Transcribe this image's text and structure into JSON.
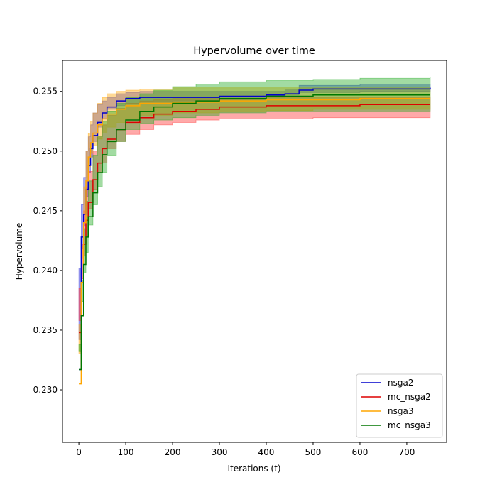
{
  "chart_data": {
    "type": "line",
    "title": "Hypervolume over time",
    "xlabel": "Iterations (t)",
    "ylabel": "Hypervolume",
    "xlim": [
      -35,
      785
    ],
    "ylim": [
      0.2256,
      0.2576
    ],
    "xticks": [
      0,
      100,
      200,
      300,
      400,
      500,
      600,
      700
    ],
    "yticks": [
      0.23,
      0.235,
      0.24,
      0.245,
      0.25,
      0.255
    ],
    "xtick_labels": [
      "0",
      "100",
      "200",
      "300",
      "400",
      "500",
      "600",
      "700"
    ],
    "ytick_labels": [
      "0.230",
      "0.235",
      "0.240",
      "0.245",
      "0.250",
      "0.255"
    ],
    "legend_position": "lower-right",
    "grid": false,
    "series": [
      {
        "name": "nsga2",
        "color": "#0000cc",
        "band_color": "#3333dd",
        "mean": [
          [
            0,
            0.2317
          ],
          [
            5,
            0.2428
          ],
          [
            10,
            0.2447
          ],
          [
            15,
            0.2468
          ],
          [
            20,
            0.2488
          ],
          [
            25,
            0.2502
          ],
          [
            30,
            0.2513
          ],
          [
            40,
            0.2524
          ],
          [
            50,
            0.2532
          ],
          [
            60,
            0.2537
          ],
          [
            80,
            0.2542
          ],
          [
            100,
            0.2544
          ],
          [
            130,
            0.2545
          ],
          [
            200,
            0.2545
          ],
          [
            300,
            0.2546
          ],
          [
            400,
            0.2547
          ],
          [
            440,
            0.2548
          ],
          [
            470,
            0.2551
          ],
          [
            500,
            0.2552
          ],
          [
            600,
            0.2552
          ],
          [
            750,
            0.2553
          ]
        ],
        "upper": [
          [
            0,
            0.2342
          ],
          [
            5,
            0.2455
          ],
          [
            10,
            0.2478
          ],
          [
            15,
            0.25
          ],
          [
            20,
            0.2512
          ],
          [
            25,
            0.2522
          ],
          [
            30,
            0.2532
          ],
          [
            40,
            0.2539
          ],
          [
            50,
            0.2542
          ],
          [
            60,
            0.2545
          ],
          [
            80,
            0.2548
          ],
          [
            100,
            0.2549
          ],
          [
            130,
            0.255
          ],
          [
            200,
            0.255
          ],
          [
            300,
            0.255
          ],
          [
            400,
            0.255
          ],
          [
            440,
            0.2552
          ],
          [
            470,
            0.2555
          ],
          [
            600,
            0.2556
          ],
          [
            750,
            0.2556
          ]
        ],
        "lower": [
          [
            0,
            0.2292
          ],
          [
            5,
            0.2402
          ],
          [
            10,
            0.2418
          ],
          [
            15,
            0.2437
          ],
          [
            20,
            0.2462
          ],
          [
            25,
            0.2482
          ],
          [
            30,
            0.2495
          ],
          [
            40,
            0.2508
          ],
          [
            50,
            0.252
          ],
          [
            60,
            0.2527
          ],
          [
            80,
            0.2535
          ],
          [
            100,
            0.2538
          ],
          [
            130,
            0.254
          ],
          [
            200,
            0.2541
          ],
          [
            300,
            0.2542
          ],
          [
            400,
            0.2543
          ],
          [
            440,
            0.2545
          ],
          [
            470,
            0.2547
          ],
          [
            600,
            0.2549
          ],
          [
            750,
            0.255
          ]
        ]
      },
      {
        "name": "mc_nsga2",
        "color": "#dd0000",
        "band_color": "#ff3333",
        "mean": [
          [
            0,
            0.2348
          ],
          [
            5,
            0.239
          ],
          [
            10,
            0.2422
          ],
          [
            15,
            0.2442
          ],
          [
            20,
            0.2457
          ],
          [
            30,
            0.2476
          ],
          [
            40,
            0.249
          ],
          [
            50,
            0.2502
          ],
          [
            60,
            0.251
          ],
          [
            80,
            0.2518
          ],
          [
            100,
            0.2524
          ],
          [
            130,
            0.2528
          ],
          [
            160,
            0.2531
          ],
          [
            200,
            0.2533
          ],
          [
            250,
            0.2535
          ],
          [
            300,
            0.2537
          ],
          [
            400,
            0.2538
          ],
          [
            500,
            0.2538
          ],
          [
            600,
            0.2539
          ],
          [
            750,
            0.2539
          ]
        ],
        "upper": [
          [
            0,
            0.2385
          ],
          [
            5,
            0.2422
          ],
          [
            10,
            0.245
          ],
          [
            15,
            0.247
          ],
          [
            20,
            0.2483
          ],
          [
            30,
            0.25
          ],
          [
            40,
            0.2512
          ],
          [
            50,
            0.2522
          ],
          [
            60,
            0.253
          ],
          [
            80,
            0.2536
          ],
          [
            100,
            0.254
          ],
          [
            130,
            0.2542
          ],
          [
            160,
            0.2543
          ],
          [
            200,
            0.2544
          ],
          [
            300,
            0.2544
          ],
          [
            400,
            0.2545
          ],
          [
            500,
            0.2545
          ],
          [
            600,
            0.2545
          ],
          [
            750,
            0.2545
          ]
        ],
        "lower": [
          [
            0,
            0.231
          ],
          [
            5,
            0.2358
          ],
          [
            10,
            0.2393
          ],
          [
            15,
            0.2412
          ],
          [
            20,
            0.2428
          ],
          [
            30,
            0.2452
          ],
          [
            40,
            0.2468
          ],
          [
            50,
            0.2482
          ],
          [
            60,
            0.249
          ],
          [
            80,
            0.2502
          ],
          [
            100,
            0.2508
          ],
          [
            130,
            0.2514
          ],
          [
            160,
            0.2518
          ],
          [
            200,
            0.2522
          ],
          [
            250,
            0.2524
          ],
          [
            300,
            0.2526
          ],
          [
            400,
            0.2527
          ],
          [
            500,
            0.2527
          ],
          [
            600,
            0.2528
          ],
          [
            750,
            0.2528
          ]
        ]
      },
      {
        "name": "nsga3",
        "color": "#ffa500",
        "band_color": "#ffa500",
        "mean": [
          [
            0,
            0.2305
          ],
          [
            5,
            0.239
          ],
          [
            10,
            0.244
          ],
          [
            15,
            0.2475
          ],
          [
            20,
            0.2495
          ],
          [
            25,
            0.2507
          ],
          [
            30,
            0.2515
          ],
          [
            40,
            0.2522
          ],
          [
            50,
            0.2527
          ],
          [
            60,
            0.2531
          ],
          [
            80,
            0.2535
          ],
          [
            100,
            0.2538
          ],
          [
            130,
            0.254
          ],
          [
            200,
            0.2541
          ],
          [
            300,
            0.2542
          ],
          [
            400,
            0.2543
          ],
          [
            500,
            0.2543
          ],
          [
            600,
            0.2544
          ],
          [
            750,
            0.2544
          ]
        ],
        "upper": [
          [
            0,
            0.233
          ],
          [
            5,
            0.242
          ],
          [
            10,
            0.247
          ],
          [
            15,
            0.25
          ],
          [
            20,
            0.2515
          ],
          [
            25,
            0.2525
          ],
          [
            30,
            0.2532
          ],
          [
            40,
            0.254
          ],
          [
            50,
            0.2545
          ],
          [
            60,
            0.2548
          ],
          [
            80,
            0.255
          ],
          [
            100,
            0.2551
          ],
          [
            130,
            0.2552
          ],
          [
            200,
            0.2553
          ],
          [
            400,
            0.2553
          ],
          [
            750,
            0.2553
          ]
        ],
        "lower": [
          [
            0,
            0.2268
          ],
          [
            5,
            0.2355
          ],
          [
            10,
            0.241
          ],
          [
            15,
            0.2448
          ],
          [
            20,
            0.247
          ],
          [
            25,
            0.2487
          ],
          [
            30,
            0.2498
          ],
          [
            40,
            0.2505
          ],
          [
            50,
            0.251
          ],
          [
            60,
            0.2515
          ],
          [
            80,
            0.252
          ],
          [
            100,
            0.2524
          ],
          [
            130,
            0.2527
          ],
          [
            200,
            0.253
          ],
          [
            300,
            0.2532
          ],
          [
            400,
            0.2533
          ],
          [
            500,
            0.2534
          ],
          [
            600,
            0.2535
          ],
          [
            750,
            0.2535
          ]
        ]
      },
      {
        "name": "mc_nsga3",
        "color": "#007700",
        "band_color": "#22aa22",
        "mean": [
          [
            0,
            0.2317
          ],
          [
            5,
            0.2362
          ],
          [
            10,
            0.2405
          ],
          [
            15,
            0.2428
          ],
          [
            20,
            0.2445
          ],
          [
            30,
            0.2465
          ],
          [
            40,
            0.2482
          ],
          [
            50,
            0.2497
          ],
          [
            60,
            0.2508
          ],
          [
            80,
            0.2518
          ],
          [
            100,
            0.2526
          ],
          [
            130,
            0.2533
          ],
          [
            160,
            0.2537
          ],
          [
            200,
            0.254
          ],
          [
            250,
            0.2542
          ],
          [
            300,
            0.2544
          ],
          [
            400,
            0.2546
          ],
          [
            500,
            0.2547
          ],
          [
            600,
            0.2547
          ],
          [
            750,
            0.2547
          ]
        ],
        "upper": [
          [
            0,
            0.2338
          ],
          [
            5,
            0.2392
          ],
          [
            10,
            0.2435
          ],
          [
            15,
            0.2458
          ],
          [
            20,
            0.2475
          ],
          [
            30,
            0.2496
          ],
          [
            40,
            0.2512
          ],
          [
            50,
            0.2525
          ],
          [
            60,
            0.2533
          ],
          [
            80,
            0.254
          ],
          [
            100,
            0.2545
          ],
          [
            130,
            0.2548
          ],
          [
            160,
            0.2551
          ],
          [
            200,
            0.2554
          ],
          [
            250,
            0.2556
          ],
          [
            300,
            0.2558
          ],
          [
            400,
            0.2559
          ],
          [
            500,
            0.256
          ],
          [
            600,
            0.2561
          ],
          [
            750,
            0.2562
          ]
        ],
        "lower": [
          [
            0,
            0.2282
          ],
          [
            5,
            0.2332
          ],
          [
            10,
            0.2374
          ],
          [
            15,
            0.2398
          ],
          [
            20,
            0.2415
          ],
          [
            30,
            0.2438
          ],
          [
            40,
            0.2455
          ],
          [
            50,
            0.247
          ],
          [
            60,
            0.2482
          ],
          [
            80,
            0.2496
          ],
          [
            100,
            0.2508
          ],
          [
            130,
            0.2518
          ],
          [
            160,
            0.2523
          ],
          [
            200,
            0.2526
          ],
          [
            250,
            0.2528
          ],
          [
            300,
            0.253
          ],
          [
            400,
            0.2532
          ],
          [
            500,
            0.2533
          ],
          [
            600,
            0.2533
          ],
          [
            750,
            0.2533
          ]
        ]
      }
    ]
  }
}
